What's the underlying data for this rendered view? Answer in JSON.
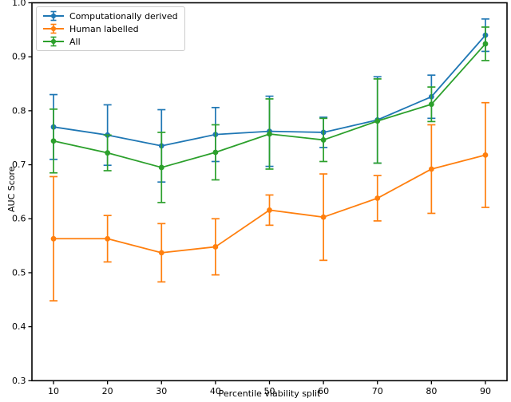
{
  "figure": {
    "background": "#ffffff",
    "spine_color": "#000000",
    "text_color": "#000000"
  },
  "chart_data": {
    "type": "line",
    "title": "",
    "xlabel": "Percentile viability split",
    "ylabel": "AUC Score",
    "x": [
      10,
      20,
      30,
      40,
      50,
      60,
      70,
      80,
      90
    ],
    "xticks": [
      10,
      20,
      30,
      40,
      50,
      60,
      70,
      80,
      90
    ],
    "yticks": [
      0.3,
      0.4,
      0.5,
      0.6,
      0.7,
      0.8,
      0.9,
      1.0
    ],
    "xlim": [
      6,
      94
    ],
    "ylim": [
      0.3,
      1.0
    ],
    "grid": false,
    "legend_position": "upper-left",
    "marker": "circle",
    "error_bars": true,
    "series": [
      {
        "name": "Computationally derived",
        "color": "#1f77b4",
        "values": [
          0.77,
          0.755,
          0.735,
          0.756,
          0.762,
          0.76,
          0.783,
          0.826,
          0.94
        ],
        "errors": [
          0.06,
          0.056,
          0.067,
          0.05,
          0.065,
          0.028,
          0.08,
          0.04,
          0.03
        ]
      },
      {
        "name": "Human labelled",
        "color": "#ff7f0e",
        "values": [
          0.563,
          0.563,
          0.537,
          0.548,
          0.616,
          0.603,
          0.638,
          0.692,
          0.718
        ],
        "errors": [
          0.115,
          0.043,
          0.054,
          0.052,
          0.028,
          0.08,
          0.042,
          0.082,
          0.097
        ]
      },
      {
        "name": "All",
        "color": "#2ca02c",
        "values": [
          0.744,
          0.722,
          0.695,
          0.723,
          0.757,
          0.746,
          0.781,
          0.812,
          0.924
        ],
        "errors": [
          0.059,
          0.033,
          0.065,
          0.051,
          0.065,
          0.04,
          0.078,
          0.032,
          0.031
        ]
      }
    ]
  }
}
